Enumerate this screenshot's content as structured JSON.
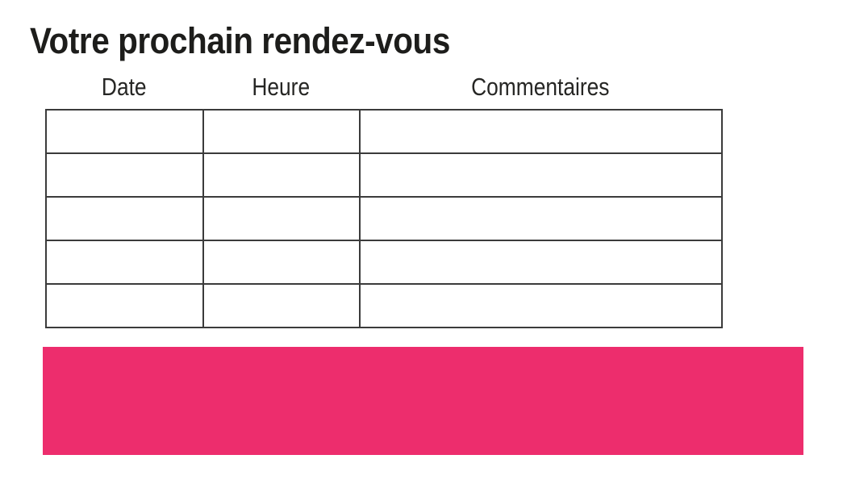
{
  "page": {
    "background_color": "#ffffff",
    "ink_color": "#1d1d1b"
  },
  "title": "Votre prochain rendez-vous",
  "appointments_table": {
    "columns": [
      "Date",
      "Heure",
      "Commentaires"
    ],
    "row_count": 5,
    "rows": [
      [
        "",
        "",
        ""
      ],
      [
        "",
        "",
        ""
      ],
      [
        "",
        "",
        ""
      ],
      [
        "",
        "",
        ""
      ],
      [
        "",
        "",
        ""
      ]
    ],
    "border_color": "#3b3b3b"
  },
  "banner": {
    "color": "#ED2D6D",
    "text": ""
  }
}
